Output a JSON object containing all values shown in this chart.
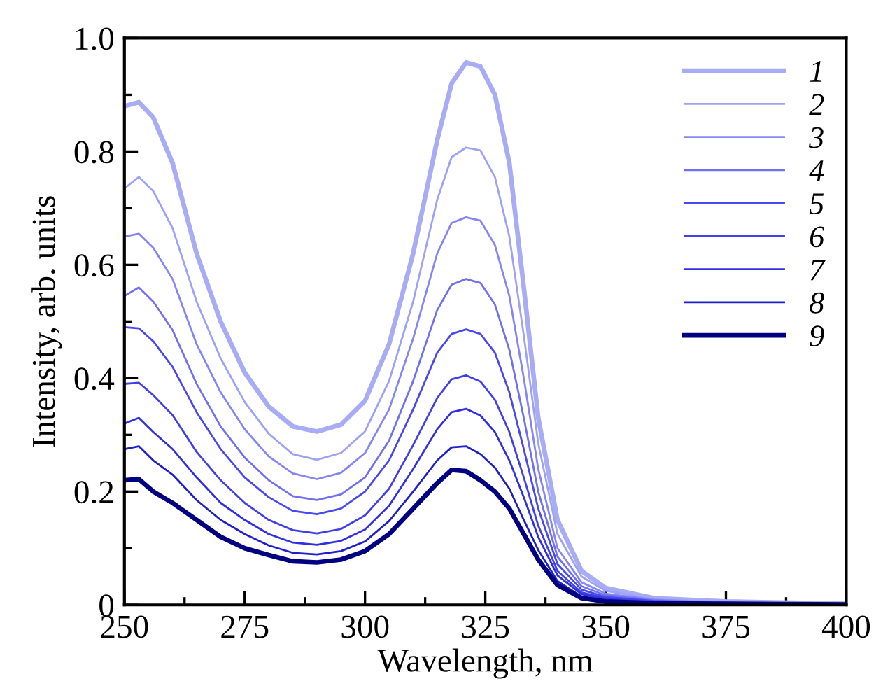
{
  "chart_data": {
    "type": "line",
    "xlabel": "Wavelength, nm",
    "ylabel": "Intensity, arb. units",
    "x": [
      250,
      253,
      256,
      260,
      265,
      270,
      275,
      280,
      285,
      290,
      295,
      300,
      305,
      310,
      315,
      318,
      321,
      324,
      327,
      330,
      333,
      336,
      340,
      345,
      350,
      360,
      375,
      400
    ],
    "xlim": [
      250,
      400
    ],
    "xticks": [
      250,
      {
        "value": 262.5,
        "label": null
      },
      275,
      {
        "value": 287.5,
        "label": null
      },
      300,
      {
        "value": 312.5,
        "label": null
      },
      325,
      {
        "value": 337.5,
        "label": null
      },
      350,
      {
        "value": 362.5,
        "label": null
      },
      375,
      {
        "value": 387.5,
        "label": null
      },
      400
    ],
    "ylim": [
      0,
      1
    ],
    "yticks": [
      0,
      {
        "value": 0.1,
        "label": null
      },
      0.2,
      {
        "value": 0.3,
        "label": null
      },
      0.4,
      {
        "value": 0.5,
        "label": null
      },
      0.6,
      {
        "value": 0.7,
        "label": null
      },
      0.8,
      {
        "value": 0.9,
        "label": null
      },
      {
        "value": 1,
        "label": "1.0"
      }
    ],
    "grid": false,
    "legend": "top right",
    "marker": "none",
    "line_style": "solid",
    "series": [
      {
        "name": "1",
        "color": "#a8acf5",
        "values": [
          0.88,
          0.887,
          0.86,
          0.78,
          0.62,
          0.5,
          0.41,
          0.35,
          0.315,
          0.306,
          0.318,
          0.36,
          0.46,
          0.62,
          0.82,
          0.92,
          0.957,
          0.95,
          0.9,
          0.78,
          0.56,
          0.33,
          0.15,
          0.06,
          0.03,
          0.012,
          0.006,
          0.002
        ]
      },
      {
        "name": "2",
        "color": "#9ea2f5",
        "values": [
          0.735,
          0.755,
          0.73,
          0.665,
          0.535,
          0.435,
          0.358,
          0.302,
          0.266,
          0.256,
          0.268,
          0.306,
          0.395,
          0.535,
          0.715,
          0.79,
          0.807,
          0.802,
          0.755,
          0.65,
          0.475,
          0.285,
          0.125,
          0.05,
          0.025,
          0.01,
          0.005,
          0.002
        ]
      },
      {
        "name": "3",
        "color": "#8585f5",
        "values": [
          0.65,
          0.655,
          0.63,
          0.575,
          0.46,
          0.375,
          0.31,
          0.262,
          0.232,
          0.222,
          0.233,
          0.268,
          0.345,
          0.47,
          0.62,
          0.674,
          0.684,
          0.678,
          0.635,
          0.545,
          0.4,
          0.24,
          0.1,
          0.04,
          0.02,
          0.009,
          0.004,
          0.002
        ]
      },
      {
        "name": "4",
        "color": "#7070f0",
        "values": [
          0.545,
          0.56,
          0.535,
          0.485,
          0.39,
          0.315,
          0.26,
          0.22,
          0.192,
          0.185,
          0.195,
          0.225,
          0.29,
          0.395,
          0.52,
          0.565,
          0.575,
          0.568,
          0.53,
          0.45,
          0.33,
          0.2,
          0.085,
          0.033,
          0.017,
          0.008,
          0.004,
          0.002
        ]
      },
      {
        "name": "5",
        "color": "#4848ee",
        "values": [
          0.49,
          0.488,
          0.465,
          0.42,
          0.34,
          0.275,
          0.225,
          0.19,
          0.166,
          0.16,
          0.17,
          0.2,
          0.255,
          0.345,
          0.445,
          0.478,
          0.486,
          0.478,
          0.445,
          0.375,
          0.275,
          0.17,
          0.072,
          0.027,
          0.014,
          0.007,
          0.003,
          0.001
        ]
      },
      {
        "name": "6",
        "color": "#4040e6",
        "values": [
          0.39,
          0.392,
          0.37,
          0.335,
          0.27,
          0.22,
          0.18,
          0.15,
          0.132,
          0.126,
          0.134,
          0.158,
          0.205,
          0.282,
          0.365,
          0.398,
          0.405,
          0.394,
          0.362,
          0.305,
          0.225,
          0.14,
          0.06,
          0.022,
          0.012,
          0.006,
          0.003,
          0.001
        ]
      },
      {
        "name": "7",
        "color": "#3030e0",
        "values": [
          0.32,
          0.33,
          0.305,
          0.275,
          0.225,
          0.18,
          0.15,
          0.125,
          0.11,
          0.106,
          0.113,
          0.133,
          0.175,
          0.24,
          0.31,
          0.34,
          0.346,
          0.334,
          0.305,
          0.255,
          0.19,
          0.12,
          0.052,
          0.019,
          0.01,
          0.005,
          0.003,
          0.001
        ]
      },
      {
        "name": "8",
        "color": "#2020c8",
        "values": [
          0.275,
          0.28,
          0.255,
          0.23,
          0.185,
          0.15,
          0.125,
          0.105,
          0.092,
          0.089,
          0.095,
          0.112,
          0.148,
          0.2,
          0.255,
          0.278,
          0.28,
          0.266,
          0.242,
          0.205,
          0.15,
          0.097,
          0.042,
          0.015,
          0.008,
          0.004,
          0.002,
          0.001
        ]
      },
      {
        "name": "9",
        "color": "#000080",
        "values": [
          0.22,
          0.222,
          0.2,
          0.18,
          0.15,
          0.12,
          0.1,
          0.088,
          0.077,
          0.075,
          0.08,
          0.095,
          0.125,
          0.17,
          0.215,
          0.238,
          0.236,
          0.22,
          0.2,
          0.17,
          0.125,
          0.08,
          0.035,
          0.012,
          0.006,
          0.003,
          0.002,
          0.001
        ]
      }
    ]
  }
}
